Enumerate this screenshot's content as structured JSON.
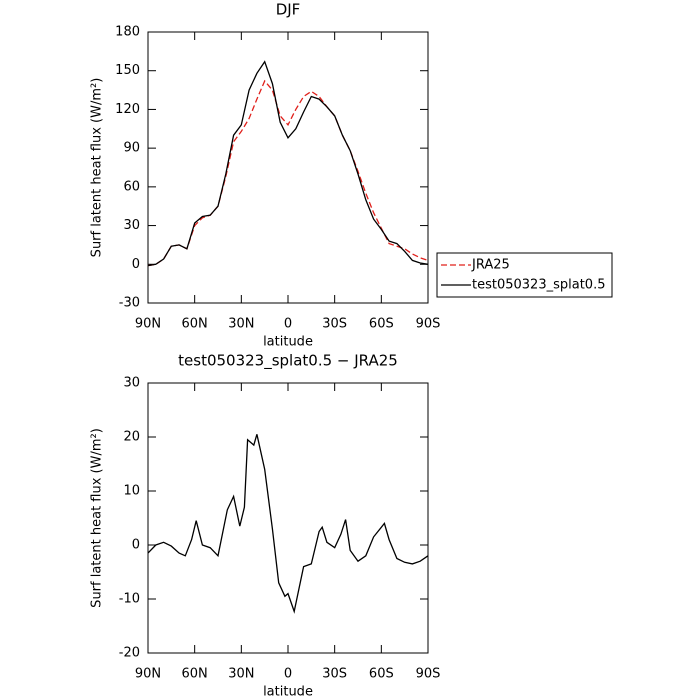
{
  "chart_data": [
    {
      "type": "line",
      "title": "DJF",
      "x_label": "latitude",
      "y_label": "Surf latent heat flux (W/m²)",
      "x": [
        90,
        85,
        80,
        75,
        70,
        65,
        60,
        55,
        50,
        45,
        40,
        35,
        30,
        25,
        20,
        15,
        10,
        5,
        0,
        -5,
        -10,
        -15,
        -20,
        -25,
        -30,
        -35,
        -40,
        -45,
        -50,
        -55,
        -60,
        -65,
        -70,
        -75,
        -80,
        -85,
        -90
      ],
      "series": [
        {
          "name": "JRA25",
          "color": "#e0201b",
          "style": "dashed",
          "values": [
            -1,
            0,
            4,
            14,
            15,
            12,
            30,
            36,
            38,
            45,
            68,
            95,
            103,
            113,
            128,
            142,
            135,
            115,
            108,
            120,
            130,
            134,
            130,
            122,
            115,
            100,
            88,
            72,
            55,
            40,
            28,
            16,
            14,
            12,
            8,
            5,
            3
          ]
        },
        {
          "name": "test050323_splat0.5",
          "color": "#000000",
          "style": "solid",
          "values": [
            -1,
            0,
            4,
            14,
            15,
            12,
            32,
            37,
            38,
            45,
            70,
            100,
            108,
            135,
            148,
            157,
            140,
            110,
            98,
            105,
            118,
            130,
            128,
            122,
            115,
            100,
            88,
            70,
            50,
            35,
            27,
            18,
            16,
            10,
            3,
            1,
            0
          ]
        }
      ],
      "xlim": [
        90,
        -90
      ],
      "ylim": [
        -30,
        180
      ],
      "xticks": [
        {
          "value": 90,
          "label": "90N"
        },
        {
          "value": 60,
          "label": "60N"
        },
        {
          "value": 30,
          "label": "30N"
        },
        0,
        {
          "value": -30,
          "label": "30S"
        },
        {
          "value": -60,
          "label": "60S"
        },
        {
          "value": -90,
          "label": "90S"
        }
      ],
      "yticks": [
        -30,
        0,
        30,
        60,
        90,
        120,
        150,
        180
      ],
      "legend": "right"
    },
    {
      "type": "line",
      "title": "test050323_splat0.5 − JRA25",
      "x_label": "latitude",
      "y_label": "Surf latent heat flux (W/m²)",
      "x": [
        90,
        85,
        80,
        75,
        70,
        66,
        62,
        59,
        55,
        50,
        45,
        39,
        35,
        31,
        28,
        26,
        22,
        20,
        15,
        10,
        6,
        2,
        0,
        -4,
        -10,
        -15,
        -20,
        -22,
        -25,
        -30,
        -34,
        -37,
        -40,
        -45,
        -50,
        -55,
        -62,
        -65,
        -70,
        -75,
        -80,
        -85,
        -90
      ],
      "series": [
        {
          "color": "#000000",
          "style": "solid",
          "values": [
            -1.5,
            0,
            0.5,
            -0.2,
            -1.5,
            -2,
            1,
            4.5,
            0,
            -0.5,
            -2,
            6.5,
            9,
            3.5,
            7,
            19.5,
            18.5,
            20.5,
            14,
            3,
            -7,
            -9.5,
            -9,
            -12.3,
            -4,
            -3.5,
            2.5,
            3.3,
            0.5,
            -0.5,
            2,
            4.7,
            -1,
            -3,
            -2,
            1.5,
            4,
            1,
            -2.5,
            -3.2,
            -3.5,
            -3,
            -2
          ]
        }
      ],
      "xlim": [
        90,
        -90
      ],
      "ylim": [
        -20,
        30
      ],
      "xticks": [
        {
          "value": 90,
          "label": "90N"
        },
        {
          "value": 60,
          "label": "60N"
        },
        {
          "value": 30,
          "label": "30N"
        },
        0,
        {
          "value": -30,
          "label": "30S"
        },
        {
          "value": -60,
          "label": "60S"
        },
        {
          "value": -90,
          "label": "90S"
        }
      ],
      "yticks": [
        -20,
        -10,
        0,
        10,
        20,
        30
      ]
    }
  ]
}
